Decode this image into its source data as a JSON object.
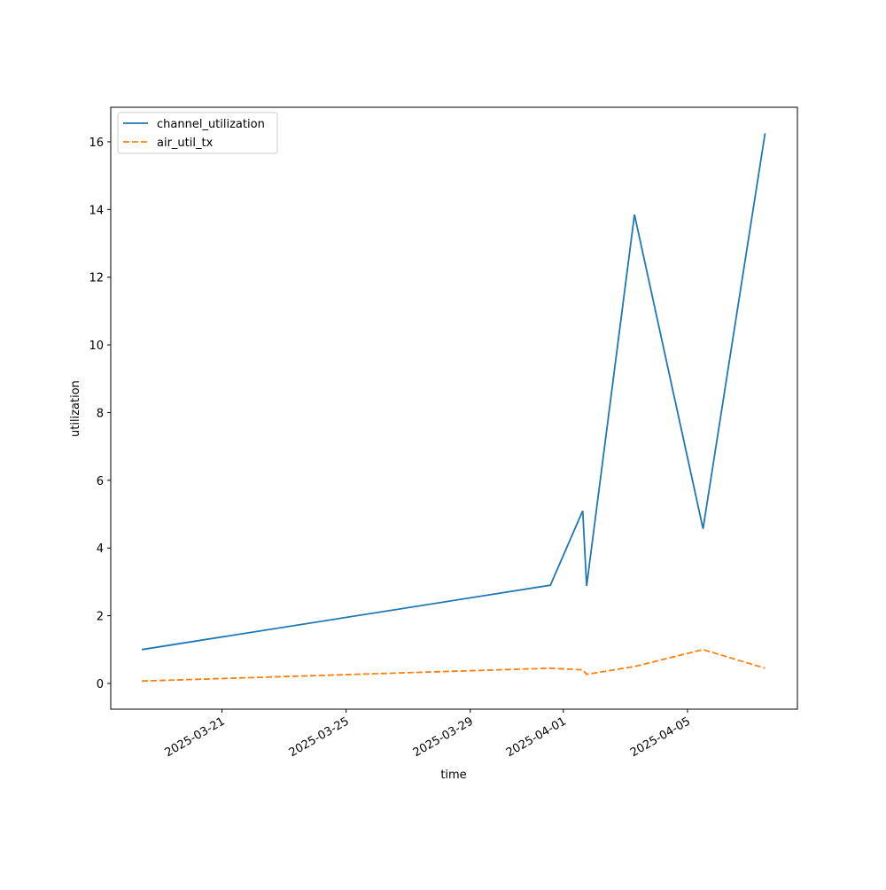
{
  "chart_data": {
    "type": "line",
    "x_label": "time",
    "y_label": "utilization",
    "x": [
      "2025-03-18 10:00",
      "2025-03-31 14:00",
      "2025-04-01 15:00",
      "2025-04-01 18:00",
      "2025-04-03 07:00",
      "2025-04-05 12:00",
      "2025-04-07 12:00"
    ],
    "series": [
      {
        "name": "channel_utilization",
        "color": "#1f77b4",
        "linestyle": "solid",
        "values": [
          1.0,
          2.9,
          5.1,
          2.88,
          13.85,
          4.57,
          16.25
        ]
      },
      {
        "name": "air_util_tx",
        "color": "#ff7f0e",
        "linestyle": "dashed",
        "values": [
          0.07,
          0.45,
          0.4,
          0.27,
          0.5,
          1.0,
          0.45
        ]
      }
    ],
    "xlim": [
      "2025-03-17 10:00",
      "2025-04-08 13:00"
    ],
    "xticks": [
      "2025-03-21",
      "2025-03-25",
      "2025-03-29",
      "2025-04-01",
      "2025-04-05"
    ],
    "ylim": [
      -0.76,
      17.02
    ],
    "yticks": [
      0,
      2,
      4,
      6,
      8,
      10,
      12,
      14,
      16
    ],
    "legend": "upper left"
  }
}
